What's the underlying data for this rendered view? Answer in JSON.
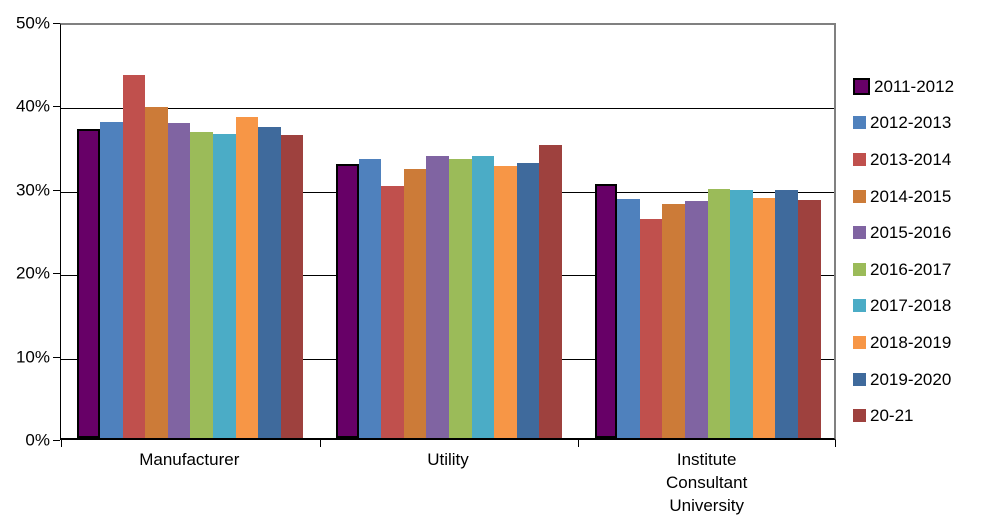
{
  "chart_data": {
    "type": "bar",
    "title": "",
    "xlabel": "",
    "ylabel": "",
    "ylim": [
      0,
      50
    ],
    "ytick_step": 10,
    "ytick_labels_top_to_bottom": [
      "50%",
      "40%",
      "30%",
      "20%",
      "10%",
      "0%"
    ],
    "grid": true,
    "legend_position": "right",
    "categories": [
      "Manufacturer",
      "Utility",
      "Institute\nConsultant\nUniversity"
    ],
    "series": [
      {
        "name": "2011-2012",
        "color": "#670067",
        "outlined": true,
        "values": [
          37.0,
          32.8,
          30.4
        ]
      },
      {
        "name": "2012-2013",
        "color": "#4F81BD",
        "outlined": false,
        "values": [
          37.9,
          33.5,
          28.6
        ]
      },
      {
        "name": "2013-2014",
        "color": "#C0504D",
        "outlined": false,
        "values": [
          43.5,
          30.2,
          26.3
        ]
      },
      {
        "name": "2014-2015",
        "color": "#CC7B38",
        "outlined": false,
        "values": [
          39.7,
          32.2,
          28.1
        ]
      },
      {
        "name": "2015-2016",
        "color": "#8064A2",
        "outlined": false,
        "values": [
          37.8,
          33.8,
          28.4
        ]
      },
      {
        "name": "2016-2017",
        "color": "#9BBB59",
        "outlined": false,
        "values": [
          36.7,
          33.4,
          29.8
        ]
      },
      {
        "name": "2017-2018",
        "color": "#4BACC6",
        "outlined": false,
        "values": [
          36.5,
          33.8,
          29.7
        ]
      },
      {
        "name": "2018-2019",
        "color": "#F79646",
        "outlined": false,
        "values": [
          38.5,
          32.6,
          28.8
        ]
      },
      {
        "name": "2019-2020",
        "color": "#3F6A9C",
        "outlined": false,
        "values": [
          37.3,
          33.0,
          29.7
        ]
      },
      {
        "name": "20-21",
        "color": "#9E413E",
        "outlined": false,
        "values": [
          36.3,
          35.1,
          28.5
        ]
      }
    ],
    "colors": {
      "gridline": "#000000",
      "axis": "#000000",
      "plot_border": "#808080",
      "background": "#ffffff",
      "text": "#000000"
    }
  }
}
